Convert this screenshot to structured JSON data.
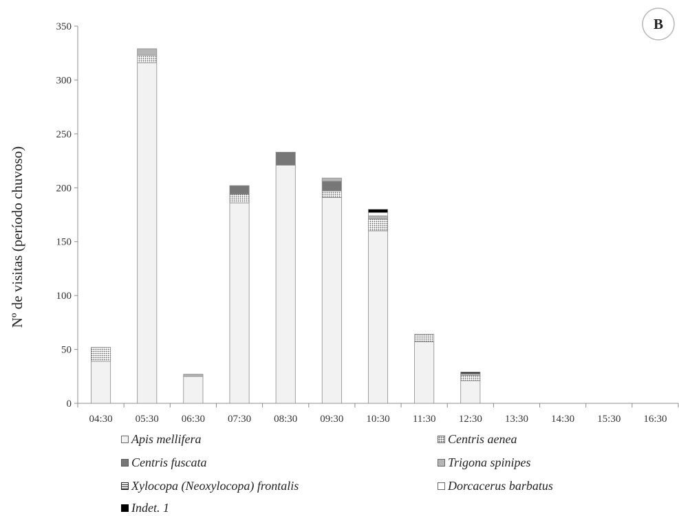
{
  "panel_label": "B",
  "chart_data": {
    "type": "bar",
    "stacked": true,
    "title": "",
    "xlabel": "",
    "ylabel": "Nº de visitas  (período chuvoso)",
    "ylim": [
      0,
      350
    ],
    "yticks": [
      0,
      50,
      100,
      150,
      200,
      250,
      300,
      350
    ],
    "grid": false,
    "legend_position": "bottom",
    "categories": [
      "04:30",
      "05:30",
      "06:30",
      "07:30",
      "08:30",
      "09:30",
      "10:30",
      "11:30",
      "12:30",
      "13:30",
      "14:30",
      "15:30",
      "16:30"
    ],
    "series": [
      {
        "name": "Apis mellifera",
        "color": "#f2f2f2",
        "pattern": "solid",
        "values": [
          39,
          316,
          25,
          186,
          221,
          191,
          160,
          57,
          21,
          0,
          0,
          0,
          0
        ]
      },
      {
        "name": "Centris aenea",
        "color": "#ffffff",
        "pattern": "dots",
        "values": [
          13,
          7,
          0,
          8,
          0,
          6,
          11,
          7,
          5,
          0,
          0,
          0,
          0
        ]
      },
      {
        "name": "Centris fuscata",
        "color": "#777777",
        "pattern": "solid",
        "values": [
          0,
          0,
          0,
          8,
          12,
          9,
          0,
          0,
          0,
          0,
          0,
          0,
          0
        ]
      },
      {
        "name": "Trigona spinipes",
        "color": "#b5b5b5",
        "pattern": "solid",
        "values": [
          0,
          6,
          2,
          0,
          0,
          3,
          3,
          0,
          1,
          0,
          0,
          0,
          0
        ]
      },
      {
        "name": "Xylocopa (Neoxylocopa) frontalis",
        "color": "#ffffff",
        "pattern": "hlines",
        "values": [
          0,
          0,
          0,
          0,
          0,
          0,
          0,
          0,
          1,
          0,
          0,
          0,
          0
        ]
      },
      {
        "name": "Dorcacerus barbatus",
        "color": "#ffffff",
        "pattern": "solid",
        "values": [
          0,
          0,
          0,
          0,
          0,
          0,
          3,
          0,
          0,
          0,
          0,
          0,
          0
        ]
      },
      {
        "name": "Indet. 1",
        "color": "#000000",
        "pattern": "solid",
        "values": [
          0,
          0,
          0,
          0,
          0,
          0,
          3,
          0,
          1,
          0,
          0,
          0,
          0
        ]
      }
    ]
  }
}
